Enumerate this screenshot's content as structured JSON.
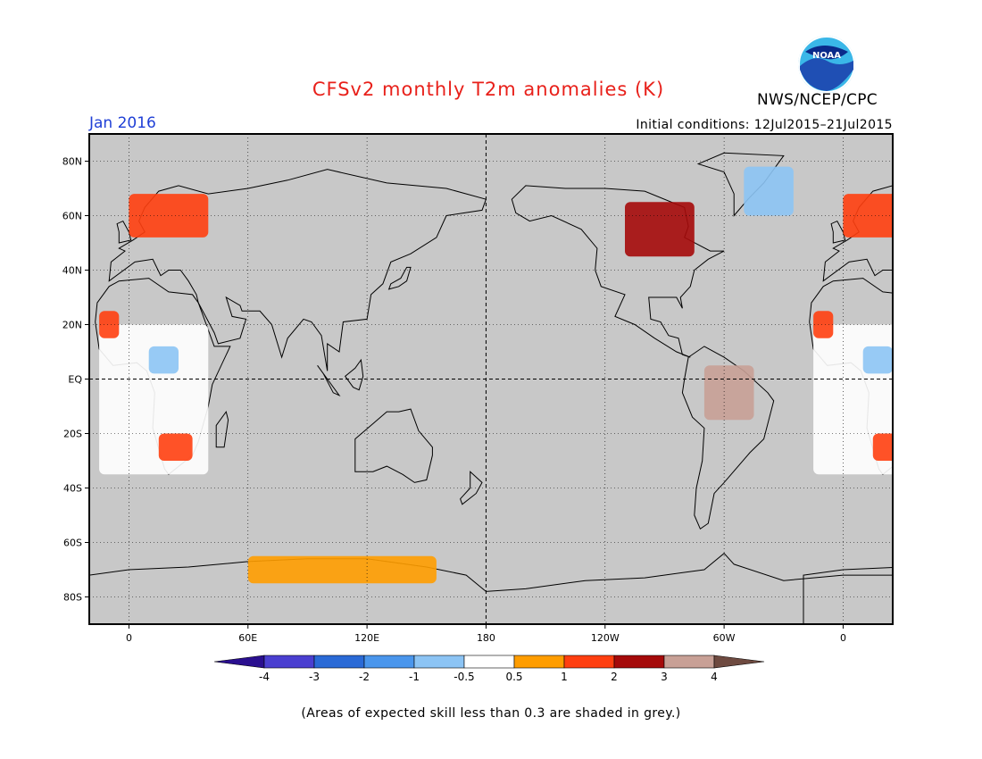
{
  "title": "CFSv2 monthly T2m anomalies (K)",
  "agency": "NWS/NCEP/CPC",
  "logo_text": "NOAA",
  "valid_month": "Jan 2016",
  "initial_conditions": "Initial conditions: 12Jul2015–21Jul2015",
  "footnote": "(Areas of expected skill less than 0.3 are shaded in grey.)",
  "map": {
    "projection": "cylindrical equidistant",
    "lon_range": [
      -20,
      385
    ],
    "lat_range": [
      -90,
      90
    ],
    "grid": "dotted",
    "background_color": "#c8c8c8",
    "lat_ticks": [
      {
        "value": 80,
        "label": "80N"
      },
      {
        "value": 60,
        "label": "60N"
      },
      {
        "value": 40,
        "label": "40N"
      },
      {
        "value": 20,
        "label": "20N"
      },
      {
        "value": 0,
        "label": "EQ"
      },
      {
        "value": -20,
        "label": "20S"
      },
      {
        "value": -40,
        "label": "40S"
      },
      {
        "value": -60,
        "label": "60S"
      },
      {
        "value": -80,
        "label": "80S"
      }
    ],
    "lon_ticks": [
      {
        "value": 0,
        "label": "0"
      },
      {
        "value": 60,
        "label": "60E"
      },
      {
        "value": 120,
        "label": "120E"
      },
      {
        "value": 180,
        "label": "180"
      },
      {
        "value": 240,
        "label": "120W"
      },
      {
        "value": 300,
        "label": "60W"
      },
      {
        "value": 360,
        "label": "0"
      }
    ]
  },
  "colorbar": {
    "colors": [
      "#2a0f8f",
      "#4a3fd0",
      "#2a6ad6",
      "#4a96ec",
      "#8cc4f4",
      "#ffffff",
      "#ff9d00",
      "#ff3f10",
      "#a50a0a",
      "#c8a096",
      "#6e4a40"
    ],
    "labels": [
      "-4",
      "-3",
      "-2",
      "-1",
      "-0.5",
      "0.5",
      "1",
      "2",
      "3",
      "4"
    ]
  },
  "anomaly_regions": [
    {
      "name": "Scandinavia / W Russia warm",
      "category": "1 to 2",
      "color": "#ff3f10",
      "lon": [
        0,
        40
      ],
      "lat": [
        52,
        68
      ]
    },
    {
      "name": "Sahara no-anomaly band",
      "category": "-0.5 to 0.5",
      "color": "#ffffff",
      "lon": [
        -15,
        40
      ],
      "lat": [
        -35,
        20
      ]
    },
    {
      "name": "West Africa coast warm",
      "category": "1 to 2",
      "color": "#ff3f10",
      "lon": [
        -15,
        -5
      ],
      "lat": [
        15,
        25
      ]
    },
    {
      "name": "Sahel cool",
      "category": "-1 to -0.5",
      "color": "#8cc4f4",
      "lon": [
        10,
        25
      ],
      "lat": [
        2,
        12
      ]
    },
    {
      "name": "Southern Africa warm",
      "category": "1 to 2",
      "color": "#ff3f10",
      "lon": [
        15,
        32
      ],
      "lat": [
        -30,
        -20
      ]
    },
    {
      "name": "Canadian Shield warm",
      "category": "2 to 3",
      "color": "#a50a0a",
      "lon": [
        250,
        285
      ],
      "lat": [
        45,
        65
      ]
    },
    {
      "name": "Greenland cool",
      "category": "-1 to -0.5",
      "color": "#8cc4f4",
      "lon": [
        310,
        335
      ],
      "lat": [
        60,
        78
      ]
    },
    {
      "name": "Amazon basin hot",
      "category": "3 to 4",
      "color": "#c8a096",
      "lon": [
        290,
        315
      ],
      "lat": [
        -15,
        5
      ]
    },
    {
      "name": "Antarctic coast warm",
      "category": "0.5 to 1",
      "color": "#ff9d00",
      "lon": [
        60,
        155
      ],
      "lat": [
        -75,
        -65
      ]
    }
  ]
}
